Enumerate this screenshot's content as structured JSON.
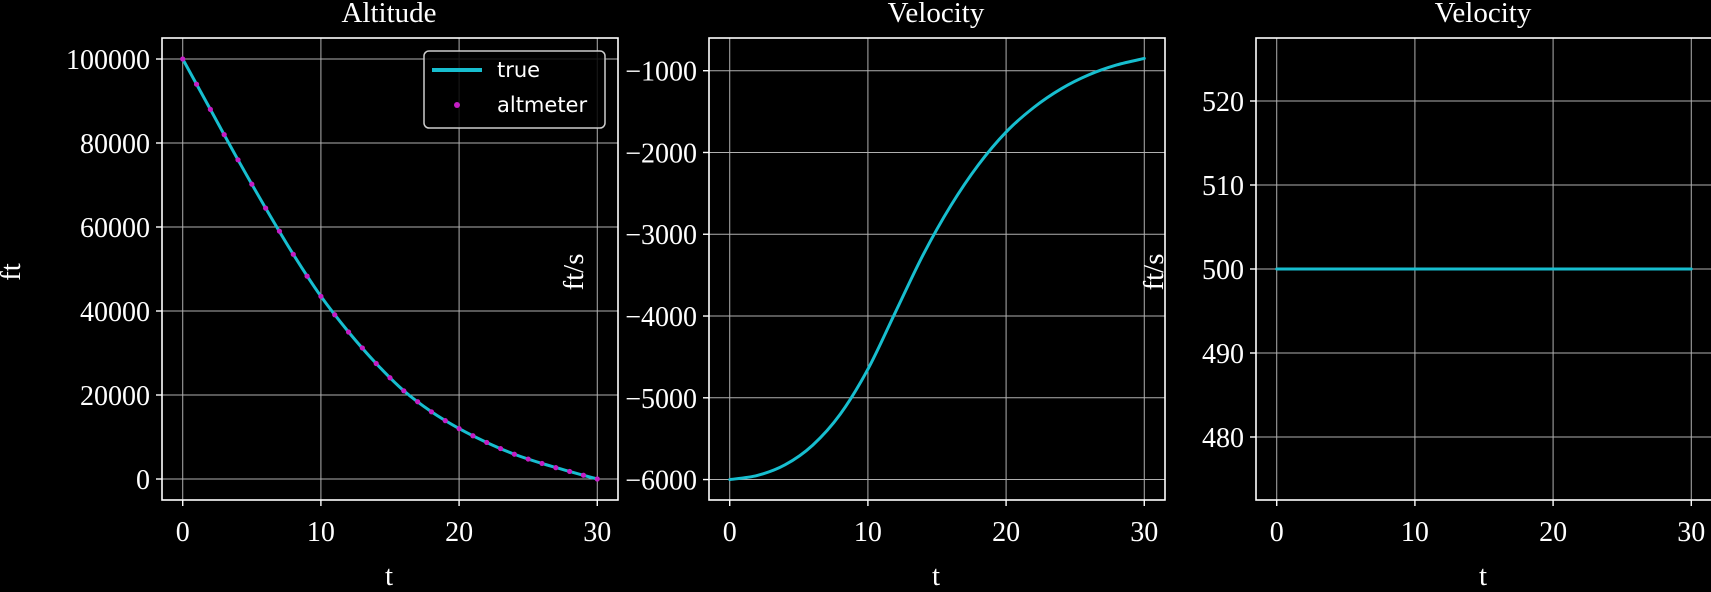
{
  "chart_data": [
    {
      "type": "line",
      "title": "Altitude",
      "xlabel": "t",
      "ylabel": "ft",
      "xlim": [
        -1.5,
        31.5
      ],
      "ylim": [
        -5000,
        105000
      ],
      "xticks": [
        0,
        10,
        20,
        30
      ],
      "yticks": [
        0,
        20000,
        40000,
        60000,
        80000,
        100000
      ],
      "grid": true,
      "legend": "top-right",
      "series": [
        {
          "name": "true",
          "style": "line",
          "color": "#17becf",
          "x": [
            0,
            2,
            4,
            6,
            8,
            10,
            12,
            14,
            16,
            18,
            20,
            22,
            24,
            26,
            28,
            30
          ],
          "y": [
            100000,
            88000,
            76000,
            64500,
            53500,
            43500,
            35000,
            27500,
            21000,
            16000,
            12000,
            8700,
            5900,
            3700,
            1800,
            0
          ]
        },
        {
          "name": "altmeter",
          "style": "dots",
          "color": "#c41ec4",
          "x": [
            0,
            1,
            2,
            3,
            4,
            5,
            6,
            7,
            8,
            9,
            10,
            11,
            12,
            13,
            14,
            15,
            16,
            17,
            18,
            19,
            20,
            21,
            22,
            23,
            24,
            25,
            26,
            27,
            28,
            29,
            30
          ],
          "y": [
            100000,
            94000,
            88000,
            82000,
            76000,
            70200,
            64500,
            59000,
            53500,
            48300,
            43500,
            39100,
            35000,
            31200,
            27500,
            24100,
            21000,
            18400,
            16000,
            13900,
            12000,
            10300,
            8700,
            7250,
            5900,
            4750,
            3700,
            2700,
            1800,
            900,
            0
          ]
        }
      ]
    },
    {
      "type": "line",
      "title": "Velocity",
      "xlabel": "t",
      "ylabel": "ft/s",
      "xlim": [
        -1.5,
        31.5
      ],
      "ylim": [
        -6250,
        -600
      ],
      "xticks": [
        0,
        10,
        20,
        30
      ],
      "yticks": [
        -1000,
        -2000,
        -3000,
        -4000,
        -5000,
        -6000
      ],
      "grid": true,
      "series": [
        {
          "color": "#17becf",
          "x": [
            0,
            2,
            4,
            6,
            8,
            10,
            12,
            14,
            16,
            18,
            20,
            22,
            24,
            26,
            28,
            30
          ],
          "y": [
            -6000,
            -5950,
            -5820,
            -5580,
            -5200,
            -4650,
            -3950,
            -3250,
            -2650,
            -2150,
            -1750,
            -1450,
            -1220,
            -1050,
            -930,
            -850
          ]
        }
      ]
    },
    {
      "type": "line",
      "title": "Velocity",
      "xlabel": "t",
      "ylabel": "ft/s",
      "xlim": [
        -1.5,
        31.5
      ],
      "ylim": [
        472.5,
        527.5
      ],
      "xticks": [
        0,
        10,
        20,
        30
      ],
      "yticks": [
        480,
        490,
        500,
        510,
        520
      ],
      "grid": true,
      "series": [
        {
          "color": "#17becf",
          "x": [
            0,
            30
          ],
          "y": [
            500,
            500
          ]
        }
      ]
    }
  ]
}
